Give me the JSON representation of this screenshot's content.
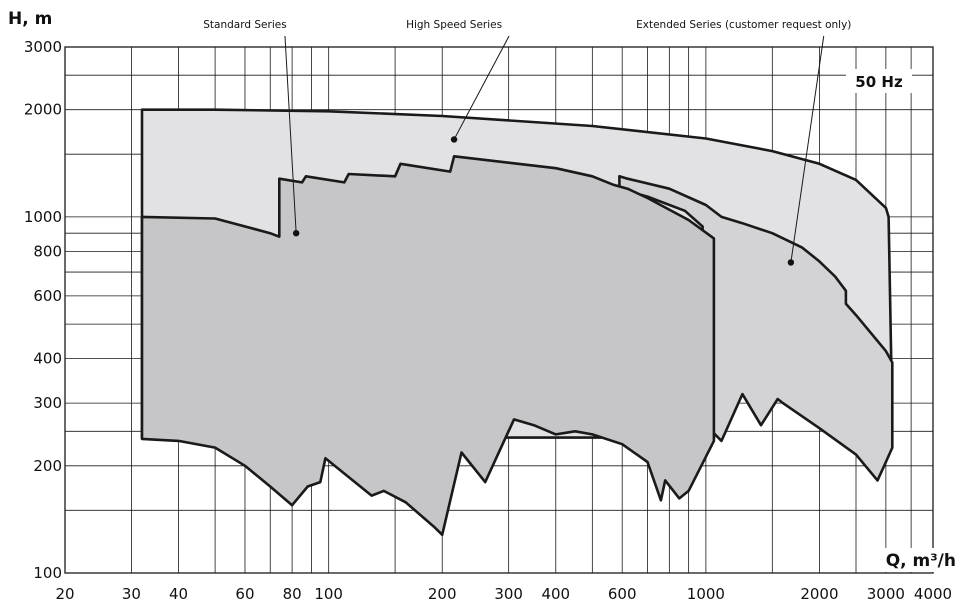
{
  "chart_data": {
    "type": "area",
    "log_x": true,
    "log_y": true,
    "ylabel": "H, m",
    "xlabel": "Q, m³/h",
    "annotation": "50 Hz",
    "xlim": [
      20,
      4000
    ],
    "ylim": [
      100,
      3000
    ],
    "x_ticks": [
      {
        "v": 20,
        "label": "20"
      },
      {
        "v": 30,
        "label": "30"
      },
      {
        "v": 40,
        "label": "40"
      },
      {
        "v": 60,
        "label": "60"
      },
      {
        "v": 80,
        "label": "80"
      },
      {
        "v": 100,
        "label": "100"
      },
      {
        "v": 200,
        "label": "200"
      },
      {
        "v": 300,
        "label": "300"
      },
      {
        "v": 400,
        "label": "400"
      },
      {
        "v": 600,
        "label": "600"
      },
      {
        "v": 1000,
        "label": "1000"
      },
      {
        "v": 2000,
        "label": "2000"
      },
      {
        "v": 3000,
        "label": "3000"
      },
      {
        "v": 4000,
        "label": "4000"
      }
    ],
    "y_ticks": [
      {
        "v": 100,
        "label": "100"
      },
      {
        "v": 200,
        "label": "200"
      },
      {
        "v": 300,
        "label": "300"
      },
      {
        "v": 400,
        "label": "400"
      },
      {
        "v": 600,
        "label": "600"
      },
      {
        "v": 800,
        "label": "800"
      },
      {
        "v": 1000,
        "label": "1000"
      },
      {
        "v": 2000,
        "label": "2000"
      },
      {
        "v": 3000,
        "label": "3000"
      }
    ],
    "x_grid": [
      20,
      30,
      40,
      50,
      60,
      70,
      80,
      90,
      100,
      150,
      200,
      300,
      400,
      500,
      600,
      700,
      800,
      900,
      1000,
      1500,
      2000,
      2500,
      3000,
      3500,
      4000
    ],
    "y_grid": [
      100,
      150,
      200,
      250,
      300,
      400,
      500,
      600,
      700,
      800,
      900,
      1000,
      1500,
      2000,
      2500,
      3000
    ],
    "series": [
      {
        "name": "High Speed Series",
        "color": "#e2e2e4",
        "points": [
          [
            32,
            2000
          ],
          [
            50,
            2000
          ],
          [
            100,
            1980
          ],
          [
            200,
            1920
          ],
          [
            500,
            1800
          ],
          [
            1000,
            1660
          ],
          [
            1500,
            1530
          ],
          [
            2000,
            1410
          ],
          [
            2500,
            1270
          ],
          [
            3000,
            1060
          ],
          [
            3050,
            1000
          ],
          [
            3100,
            400
          ],
          [
            3100,
            380
          ],
          [
            1050,
            380
          ],
          [
            1050,
            240
          ],
          [
            32,
            240
          ]
        ]
      },
      {
        "name": "Extended Series (customer request only)",
        "color": "#d3d3d5",
        "points": [
          [
            590,
            1300
          ],
          [
            620,
            1280
          ],
          [
            800,
            1200
          ],
          [
            1000,
            1080
          ],
          [
            1100,
            1000
          ],
          [
            1250,
            960
          ],
          [
            1500,
            900
          ],
          [
            1800,
            820
          ],
          [
            2000,
            750
          ],
          [
            2200,
            680
          ],
          [
            2350,
            620
          ],
          [
            2350,
            570
          ],
          [
            2500,
            530
          ],
          [
            3000,
            420
          ],
          [
            3120,
            390
          ],
          [
            3120,
            225
          ],
          [
            3000,
            205
          ],
          [
            2850,
            182
          ],
          [
            2500,
            215
          ],
          [
            2000,
            255
          ],
          [
            1600,
            300
          ],
          [
            1550,
            308
          ],
          [
            1400,
            260
          ],
          [
            1250,
            318
          ],
          [
            1100,
            235
          ],
          [
            1000,
            260
          ],
          [
            980,
            940
          ],
          [
            880,
            1040
          ],
          [
            700,
            1140
          ],
          [
            620,
            1180
          ],
          [
            600,
            1210
          ],
          [
            590,
            1210
          ]
        ]
      },
      {
        "name": "Standard Series",
        "color": "#c6c6c8",
        "points": [
          [
            32,
            1000
          ],
          [
            50,
            990
          ],
          [
            70,
            900
          ],
          [
            74,
            880
          ],
          [
            74,
            1280
          ],
          [
            85,
            1250
          ],
          [
            87,
            1300
          ],
          [
            110,
            1250
          ],
          [
            113,
            1320
          ],
          [
            150,
            1300
          ],
          [
            155,
            1410
          ],
          [
            210,
            1340
          ],
          [
            215,
            1480
          ],
          [
            300,
            1420
          ],
          [
            400,
            1370
          ],
          [
            500,
            1300
          ],
          [
            570,
            1230
          ],
          [
            620,
            1200
          ],
          [
            700,
            1130
          ],
          [
            900,
            980
          ],
          [
            1050,
            870
          ],
          [
            1050,
            235
          ],
          [
            900,
            170
          ],
          [
            850,
            162
          ],
          [
            780,
            182
          ],
          [
            760,
            160
          ],
          [
            700,
            205
          ],
          [
            600,
            230
          ],
          [
            500,
            245
          ],
          [
            450,
            250
          ],
          [
            400,
            245
          ],
          [
            350,
            260
          ],
          [
            310,
            270
          ],
          [
            260,
            180
          ],
          [
            225,
            218
          ],
          [
            200,
            128
          ],
          [
            190,
            135
          ],
          [
            160,
            158
          ],
          [
            140,
            170
          ],
          [
            130,
            165
          ],
          [
            98,
            210
          ],
          [
            95,
            180
          ],
          [
            88,
            175
          ],
          [
            80,
            155
          ],
          [
            70,
            175
          ],
          [
            60,
            200
          ],
          [
            50,
            225
          ],
          [
            40,
            235
          ],
          [
            32,
            238
          ]
        ]
      }
    ],
    "labels": [
      {
        "text": "Standard Series",
        "x": 60
      },
      {
        "text": "High Speed Series",
        "x": 215
      },
      {
        "text": "Extended Series (customer request only)",
        "x": 1260
      }
    ],
    "markers": [
      {
        "series": "Standard Series",
        "x": 82,
        "y": 900
      },
      {
        "series": "High Speed Series",
        "x": 215,
        "y": 1650
      },
      {
        "series": "Extended Series (customer request only)",
        "x": 1680,
        "y": 745
      }
    ]
  }
}
